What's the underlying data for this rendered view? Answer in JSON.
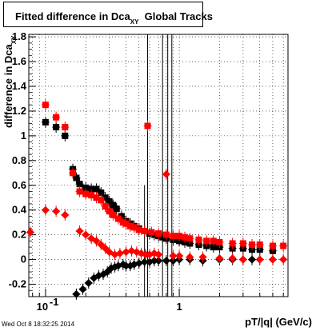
{
  "title": {
    "prefix": "Fitted difference in Dca",
    "subscript": "XY",
    "suffix": "Global Tracks"
  },
  "y_axis_label": {
    "prefix": "difference in Dca",
    "subscript": "XY"
  },
  "x_axis_label": "pT/|q| (GeV/c)",
  "timestamp": "Wed Oct  8 18:32:25 2014",
  "colors": {
    "black_series": "#000000",
    "red_series": "#ff0000",
    "axes": "#000000",
    "grid": "#000000"
  },
  "chart_data": {
    "type": "scatter",
    "x_scale": "log",
    "xlim": [
      0.075,
      6.5
    ],
    "ylim": [
      -0.3,
      1.82
    ],
    "grid": true,
    "legend": "none",
    "x_ticks": [
      {
        "value": 0.1,
        "label": "10",
        "exponent": "-1"
      },
      {
        "value": 1,
        "label": "1",
        "exponent": ""
      }
    ],
    "y_ticks": [
      -0.2,
      0,
      0.2,
      0.4,
      0.6,
      0.8,
      1,
      1.2,
      1.4,
      1.6,
      1.8
    ],
    "y_tick_labels": [
      "-0.2",
      "0",
      "0.2",
      "0.4",
      "0.6",
      "0.8",
      "1",
      "1.2",
      "1.4",
      "1.6",
      "1.8"
    ],
    "series": [
      {
        "color": "black",
        "marker": "square",
        "points": [
          [
            0.1,
            1.11
          ],
          [
            0.12,
            1.07
          ],
          [
            0.14,
            1.0
          ],
          [
            0.16,
            0.73
          ],
          [
            0.17,
            0.66
          ],
          [
            0.18,
            0.61
          ],
          [
            0.2,
            0.58
          ],
          [
            0.22,
            0.57
          ],
          [
            0.24,
            0.57
          ],
          [
            0.26,
            0.54
          ],
          [
            0.28,
            0.5
          ],
          [
            0.3,
            0.47
          ],
          [
            0.32,
            0.44
          ],
          [
            0.34,
            0.41
          ],
          [
            0.37,
            0.35
          ],
          [
            0.4,
            0.31
          ],
          [
            0.43,
            0.29
          ],
          [
            0.46,
            0.27
          ],
          [
            0.5,
            0.25
          ],
          [
            0.55,
            0.23
          ],
          [
            0.6,
            0.21
          ],
          [
            0.65,
            0.2
          ],
          [
            0.7,
            0.19
          ],
          [
            0.75,
            0.18
          ],
          [
            0.8,
            0.17
          ],
          [
            0.9,
            0.16
          ],
          [
            1.0,
            0.15
          ],
          [
            1.1,
            0.14
          ],
          [
            1.2,
            0.13
          ],
          [
            1.4,
            0.12
          ],
          [
            1.6,
            0.11
          ],
          [
            1.8,
            0.1
          ],
          [
            2.0,
            0.1
          ],
          [
            2.5,
            0.09
          ],
          [
            3.0,
            0.09
          ],
          [
            3.5,
            0.08
          ],
          [
            4.0,
            0.08
          ],
          [
            5.0,
            0.07
          ]
        ]
      },
      {
        "color": "black",
        "marker": "diamond",
        "points": [
          [
            0.17,
            -0.28
          ],
          [
            0.19,
            -0.24
          ],
          [
            0.21,
            -0.19
          ],
          [
            0.23,
            -0.15
          ],
          [
            0.25,
            -0.13
          ],
          [
            0.27,
            -0.12
          ],
          [
            0.29,
            -0.1
          ],
          [
            0.31,
            -0.07
          ],
          [
            0.33,
            -0.06
          ],
          [
            0.35,
            -0.05
          ],
          [
            0.38,
            -0.04
          ],
          [
            0.4,
            -0.05
          ],
          [
            0.43,
            -0.05
          ],
          [
            0.46,
            -0.04
          ],
          [
            0.5,
            -0.03
          ],
          [
            0.55,
            -0.02
          ],
          [
            0.6,
            -0.02
          ],
          [
            0.65,
            -0.01
          ],
          [
            0.7,
            -0.01
          ],
          [
            0.8,
            -0.01
          ],
          [
            0.9,
            -0.01
          ],
          [
            1.0,
            0.0
          ],
          [
            1.2,
            0.0
          ],
          [
            1.5,
            -0.01
          ],
          [
            2.0,
            0.0
          ],
          [
            2.5,
            0.0
          ],
          [
            3.0,
            0.0
          ],
          [
            3.5,
            0.0
          ],
          [
            4.0,
            0.0
          ],
          [
            5.0,
            0.0
          ]
        ]
      },
      {
        "color": "red",
        "marker": "square",
        "points": [
          [
            0.1,
            1.25
          ],
          [
            0.12,
            1.15
          ],
          [
            0.14,
            1.07
          ],
          [
            0.16,
            0.7
          ],
          [
            0.18,
            0.55
          ],
          [
            0.2,
            0.53
          ],
          [
            0.22,
            0.52
          ],
          [
            0.24,
            0.5
          ],
          [
            0.26,
            0.48
          ],
          [
            0.28,
            0.43
          ],
          [
            0.3,
            0.39
          ],
          [
            0.32,
            0.36
          ],
          [
            0.35,
            0.33
          ],
          [
            0.38,
            0.3
          ],
          [
            0.4,
            0.29
          ],
          [
            0.43,
            0.27
          ],
          [
            0.46,
            0.26
          ],
          [
            0.5,
            0.24
          ],
          [
            0.55,
            0.23
          ],
          [
            0.58,
            1.08
          ],
          [
            0.62,
            0.22
          ],
          [
            0.7,
            0.21
          ],
          [
            0.8,
            0.2
          ],
          [
            0.9,
            0.19
          ],
          [
            1.0,
            0.19
          ],
          [
            1.1,
            0.18
          ],
          [
            1.2,
            0.17
          ],
          [
            1.4,
            0.16
          ],
          [
            1.6,
            0.15
          ],
          [
            1.8,
            0.15
          ],
          [
            2.0,
            0.14
          ],
          [
            2.5,
            0.13
          ],
          [
            3.0,
            0.13
          ],
          [
            3.5,
            0.12
          ],
          [
            4.0,
            0.12
          ],
          [
            5.0,
            0.11
          ],
          [
            6.0,
            0.11
          ]
        ]
      },
      {
        "color": "red",
        "marker": "diamond",
        "points": [
          [
            0.077,
            0.22
          ],
          [
            0.1,
            0.4
          ],
          [
            0.12,
            0.39
          ],
          [
            0.14,
            0.36
          ],
          [
            0.18,
            0.23
          ],
          [
            0.2,
            0.2
          ],
          [
            0.22,
            0.17
          ],
          [
            0.24,
            0.15
          ],
          [
            0.26,
            0.12
          ],
          [
            0.28,
            0.09
          ],
          [
            0.3,
            0.06
          ],
          [
            0.33,
            0.04
          ],
          [
            0.36,
            0.05
          ],
          [
            0.4,
            0.06
          ],
          [
            0.44,
            0.07
          ],
          [
            0.48,
            0.06
          ],
          [
            0.52,
            0.05
          ],
          [
            0.56,
            0.04
          ],
          [
            0.6,
            0.04
          ],
          [
            0.65,
            0.05
          ],
          [
            0.7,
            0.04
          ],
          [
            0.8,
            0.69
          ],
          [
            0.9,
            0.03
          ],
          [
            1.0,
            0.03
          ],
          [
            1.2,
            0.02
          ],
          [
            1.5,
            0.02
          ],
          [
            2.0,
            0.01
          ],
          [
            2.5,
            0.01
          ],
          [
            3.0,
            0.0
          ],
          [
            4.0,
            0.0
          ],
          [
            5.0,
            0.0
          ],
          [
            6.0,
            0.0
          ]
        ]
      }
    ],
    "spikes": [
      {
        "x": 0.58,
        "y_low": -0.3,
        "y_high": 1.82
      },
      {
        "x": 0.75,
        "y_low": -0.3,
        "y_high": 1.82
      },
      {
        "x": 0.82,
        "y_low": -0.3,
        "y_high": 1.82
      },
      {
        "x": 0.88,
        "y_low": -0.3,
        "y_high": 1.82
      },
      {
        "x": 0.55,
        "y_low": -0.3,
        "y_high": 0.6
      }
    ]
  }
}
